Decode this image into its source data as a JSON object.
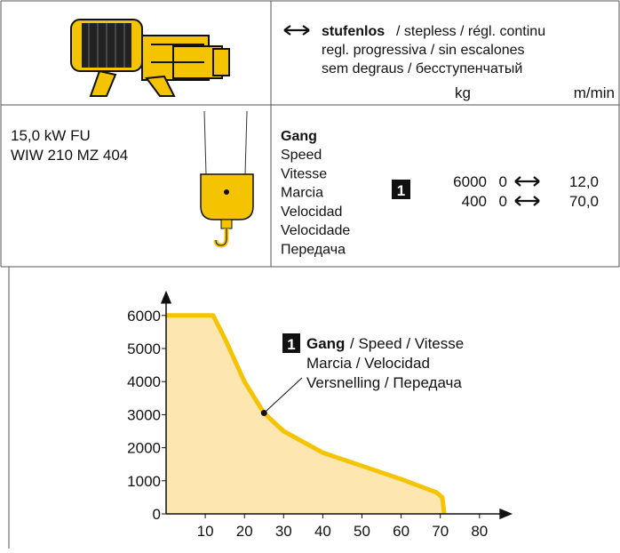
{
  "header": {
    "mode_bold": "stufenlos",
    "mode_lines": [
      "/ stepless / régl. continu",
      "regl. progressiva / sin escalones",
      "sem degraus / бесступенчатый"
    ],
    "units": [
      "kg",
      "m/min"
    ]
  },
  "model": {
    "power": "15,0 kW FU",
    "type": "WIW 210 MZ 404"
  },
  "gear": {
    "label_bold": "Gang",
    "labels": [
      "Speed",
      "Vitesse",
      "Marcia",
      "Velocidad",
      "Velocidade",
      "Передача"
    ],
    "badge": "1",
    "rows": [
      {
        "load": 6000,
        "speed_min": 0,
        "speed_max": "12,0"
      },
      {
        "load": 400,
        "speed_min": 0,
        "speed_max": "70,0"
      }
    ]
  },
  "chart_data": {
    "type": "line",
    "x": [
      0,
      12,
      15,
      20,
      25,
      30,
      40,
      50,
      60,
      69,
      70.5,
      71
    ],
    "series": [
      {
        "color": "#f5c400",
        "values": [
          6000,
          6000,
          5300,
          4000,
          3050,
          2500,
          1850,
          1450,
          1050,
          650,
          500,
          0
        ]
      }
    ],
    "xlim": [
      0,
      88
    ],
    "ylim": [
      0,
      6700
    ],
    "xticks": [
      10,
      20,
      30,
      40,
      50,
      60,
      70,
      80
    ],
    "yticks": [
      0,
      1000,
      2000,
      3000,
      4000,
      5000,
      6000
    ],
    "area_color": "#fde6b0",
    "annotation": {
      "badge": "1",
      "bold": "Gang",
      "lines": [
        "/ Speed / Vitesse",
        "Marcia / Velocidad",
        "Versnelling / Передача"
      ]
    }
  }
}
